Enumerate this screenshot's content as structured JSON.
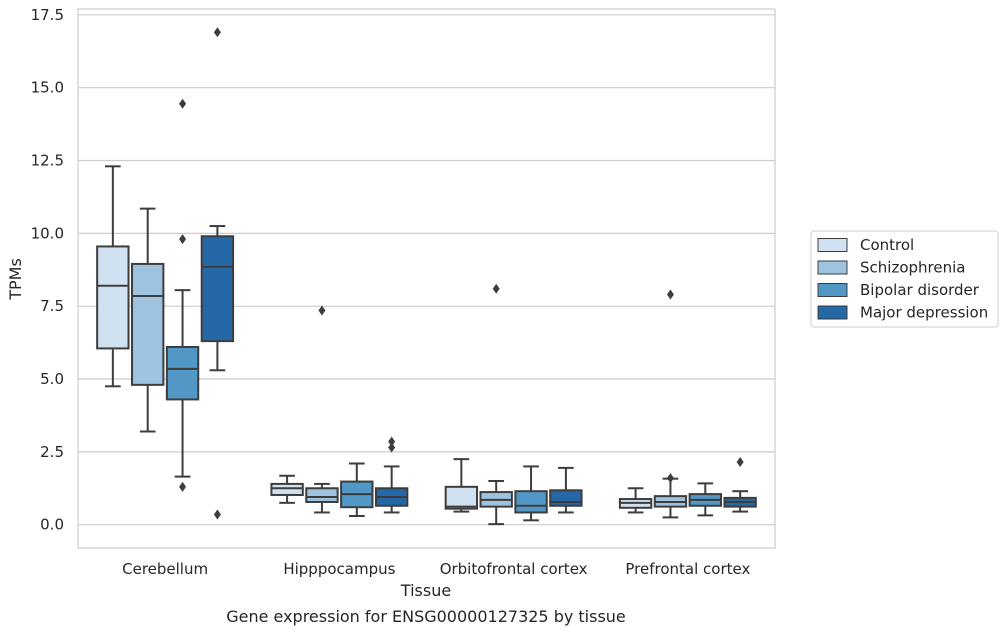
{
  "chart_data": {
    "type": "box",
    "title": "",
    "caption": "Gene expression for ENSG00000127325 by tissue",
    "xlabel": "Tissue",
    "ylabel": "TPMs",
    "ylim": [
      -0.8,
      17.7
    ],
    "yticks": [
      0.0,
      2.5,
      5.0,
      7.5,
      10.0,
      12.5,
      15.0,
      17.5
    ],
    "ytick_labels": [
      "0.0",
      "2.5",
      "5.0",
      "7.5",
      "10.0",
      "12.5",
      "15.0",
      "17.5"
    ],
    "grid": "horizontal",
    "legend_position": "right",
    "categories": [
      "Cerebellum",
      "Hipppocampus",
      "Orbitofrontal cortex",
      "Prefrontal cortex"
    ],
    "series": [
      {
        "name": "Control",
        "color": "#d0e1f2",
        "boxes": [
          {
            "whislo": 4.75,
            "q1": 6.05,
            "med": 8.2,
            "q3": 9.55,
            "whishi": 12.3,
            "fliers": []
          },
          {
            "whislo": 0.75,
            "q1": 1.02,
            "med": 1.25,
            "q3": 1.4,
            "whishi": 1.68,
            "fliers": []
          },
          {
            "whislo": 0.45,
            "q1": 0.55,
            "med": 0.62,
            "q3": 1.3,
            "whishi": 2.25,
            "fliers": []
          },
          {
            "whislo": 0.42,
            "q1": 0.58,
            "med": 0.75,
            "q3": 0.88,
            "whishi": 1.25,
            "fliers": []
          }
        ]
      },
      {
        "name": "Schizophrenia",
        "color": "#9dc3e0",
        "boxes": [
          {
            "whislo": 3.2,
            "q1": 4.8,
            "med": 7.85,
            "q3": 8.95,
            "whishi": 10.85,
            "fliers": []
          },
          {
            "whislo": 0.42,
            "q1": 0.78,
            "med": 0.95,
            "q3": 1.25,
            "whishi": 1.4,
            "fliers": [
              7.35
            ]
          },
          {
            "whislo": 0.02,
            "q1": 0.62,
            "med": 0.85,
            "q3": 1.12,
            "whishi": 1.5,
            "fliers": [
              8.1
            ]
          },
          {
            "whislo": 0.25,
            "q1": 0.62,
            "med": 0.78,
            "q3": 0.98,
            "whishi": 1.58,
            "fliers": [
              7.9,
              1.6
            ]
          }
        ]
      },
      {
        "name": "Bipolar disorder",
        "color": "#5198c7",
        "boxes": [
          {
            "whislo": 1.65,
            "q1": 4.3,
            "med": 5.35,
            "q3": 6.1,
            "whishi": 8.05,
            "fliers": [
              14.45,
              9.8,
              1.3
            ]
          },
          {
            "whislo": 0.3,
            "q1": 0.6,
            "med": 1.05,
            "q3": 1.48,
            "whishi": 2.1,
            "fliers": []
          },
          {
            "whislo": 0.15,
            "q1": 0.42,
            "med": 0.65,
            "q3": 1.15,
            "whishi": 2.0,
            "fliers": []
          },
          {
            "whislo": 0.32,
            "q1": 0.65,
            "med": 0.85,
            "q3": 1.05,
            "whishi": 1.42,
            "fliers": []
          }
        ]
      },
      {
        "name": "Major depression",
        "color": "#2468a8",
        "boxes": [
          {
            "whislo": 5.3,
            "q1": 6.3,
            "med": 8.85,
            "q3": 9.9,
            "whishi": 10.25,
            "fliers": [
              16.9,
              0.35
            ]
          },
          {
            "whislo": 0.42,
            "q1": 0.65,
            "med": 0.95,
            "q3": 1.25,
            "whishi": 2.0,
            "fliers": [
              2.85,
              2.65
            ]
          },
          {
            "whislo": 0.42,
            "q1": 0.65,
            "med": 0.78,
            "q3": 1.18,
            "whishi": 1.95,
            "fliers": []
          },
          {
            "whislo": 0.45,
            "q1": 0.62,
            "med": 0.78,
            "q3": 0.92,
            "whishi": 1.15,
            "fliers": [
              2.15
            ]
          }
        ]
      }
    ]
  }
}
